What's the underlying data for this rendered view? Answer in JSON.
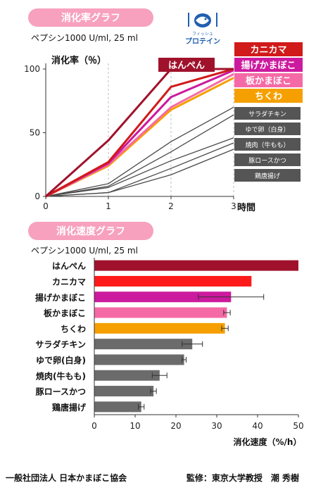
{
  "header": {
    "chart1_title": "消化率グラフ",
    "chart1_subtitle": "ペプシン1000 U/ml, 25 ml",
    "chart2_title": "消化速度グラフ",
    "chart2_subtitle": "ペプシン1000 U/ml, 25 ml",
    "logo_small": "フィッシュ",
    "logo_main": "プロテイン"
  },
  "footer": {
    "left": "一般社団法人 日本かまぼこ協会",
    "right": "監修：東京大学教授　潮 秀樹"
  },
  "chart_data": [
    {
      "type": "line",
      "title": "消化率グラフ",
      "subtitle": "ペプシン1000 U/ml, 25 ml",
      "ylabel": "消化率（％）",
      "xlabel": "時間",
      "x": [
        0,
        1,
        2,
        3
      ],
      "xticks": [
        "0",
        "1",
        "2",
        "3"
      ],
      "yticks": [
        "0",
        "50",
        "100"
      ],
      "xlim": [
        0,
        3
      ],
      "ylim": [
        0,
        100
      ],
      "grid": "dashed vertical at x ticks",
      "series": [
        {
          "name": "はんぺん",
          "color": "#a0122c",
          "values": [
            0,
            44,
            100,
            100
          ]
        },
        {
          "name": "カニカマ",
          "color": "#d11a1a",
          "values": [
            0,
            27,
            86,
            100
          ]
        },
        {
          "name": "揚げかまぼこ",
          "color": "#cc1a9e",
          "values": [
            0,
            26,
            78,
            99
          ]
        },
        {
          "name": "板かまぼこ",
          "color": "#f56aa6",
          "values": [
            0,
            25,
            70,
            96
          ]
        },
        {
          "name": "ちくわ",
          "color": "#f5a000",
          "values": [
            0,
            24,
            68,
            93
          ]
        },
        {
          "name": "サラダチキン",
          "color": "#4a4a4a",
          "values": [
            0,
            10,
            43,
            70
          ]
        },
        {
          "name": "ゆで卵（白身）",
          "color": "#4a4a4a",
          "values": [
            0,
            8,
            35,
            64
          ]
        },
        {
          "name": "焼肉（牛もも）",
          "color": "#4a4a4a",
          "values": [
            0,
            7,
            28,
            46
          ]
        },
        {
          "name": "豚ロースかつ",
          "color": "#4a4a4a",
          "values": [
            0,
            3,
            22,
            42
          ]
        },
        {
          "name": "鶏唐揚げ",
          "color": "#4a4a4a",
          "values": [
            0,
            3,
            17,
            37
          ]
        }
      ]
    },
    {
      "type": "bar",
      "orientation": "horizontal",
      "title": "消化速度グラフ",
      "subtitle": "ペプシン1000 U/ml, 25 ml",
      "xlabel": "消化速度（%/h）",
      "xlim": [
        0,
        50
      ],
      "xticks": [
        "0",
        "10",
        "20",
        "30",
        "40",
        "50"
      ],
      "categories": [
        "はんぺん",
        "カニカマ",
        "揚げかまぼこ",
        "板かまぼこ",
        "ちくわ",
        "サラダチキン",
        "ゆで卵(白身)",
        "焼肉(牛もも)",
        "豚ロースかつ",
        "鶏唐揚げ"
      ],
      "values": [
        50,
        38.5,
        33.5,
        32.5,
        32,
        24,
        22,
        16,
        14.5,
        11.5
      ],
      "errors": [
        0,
        0,
        8,
        0.8,
        0.8,
        2.5,
        0.5,
        1.8,
        0.7,
        0.7
      ],
      "colors": [
        "#a0122c",
        "#fe1a1a",
        "#cc1a9e",
        "#f56aa6",
        "#f5a000",
        "#6b6b6b",
        "#6b6b6b",
        "#6b6b6b",
        "#6b6b6b",
        "#6b6b6b"
      ]
    }
  ]
}
